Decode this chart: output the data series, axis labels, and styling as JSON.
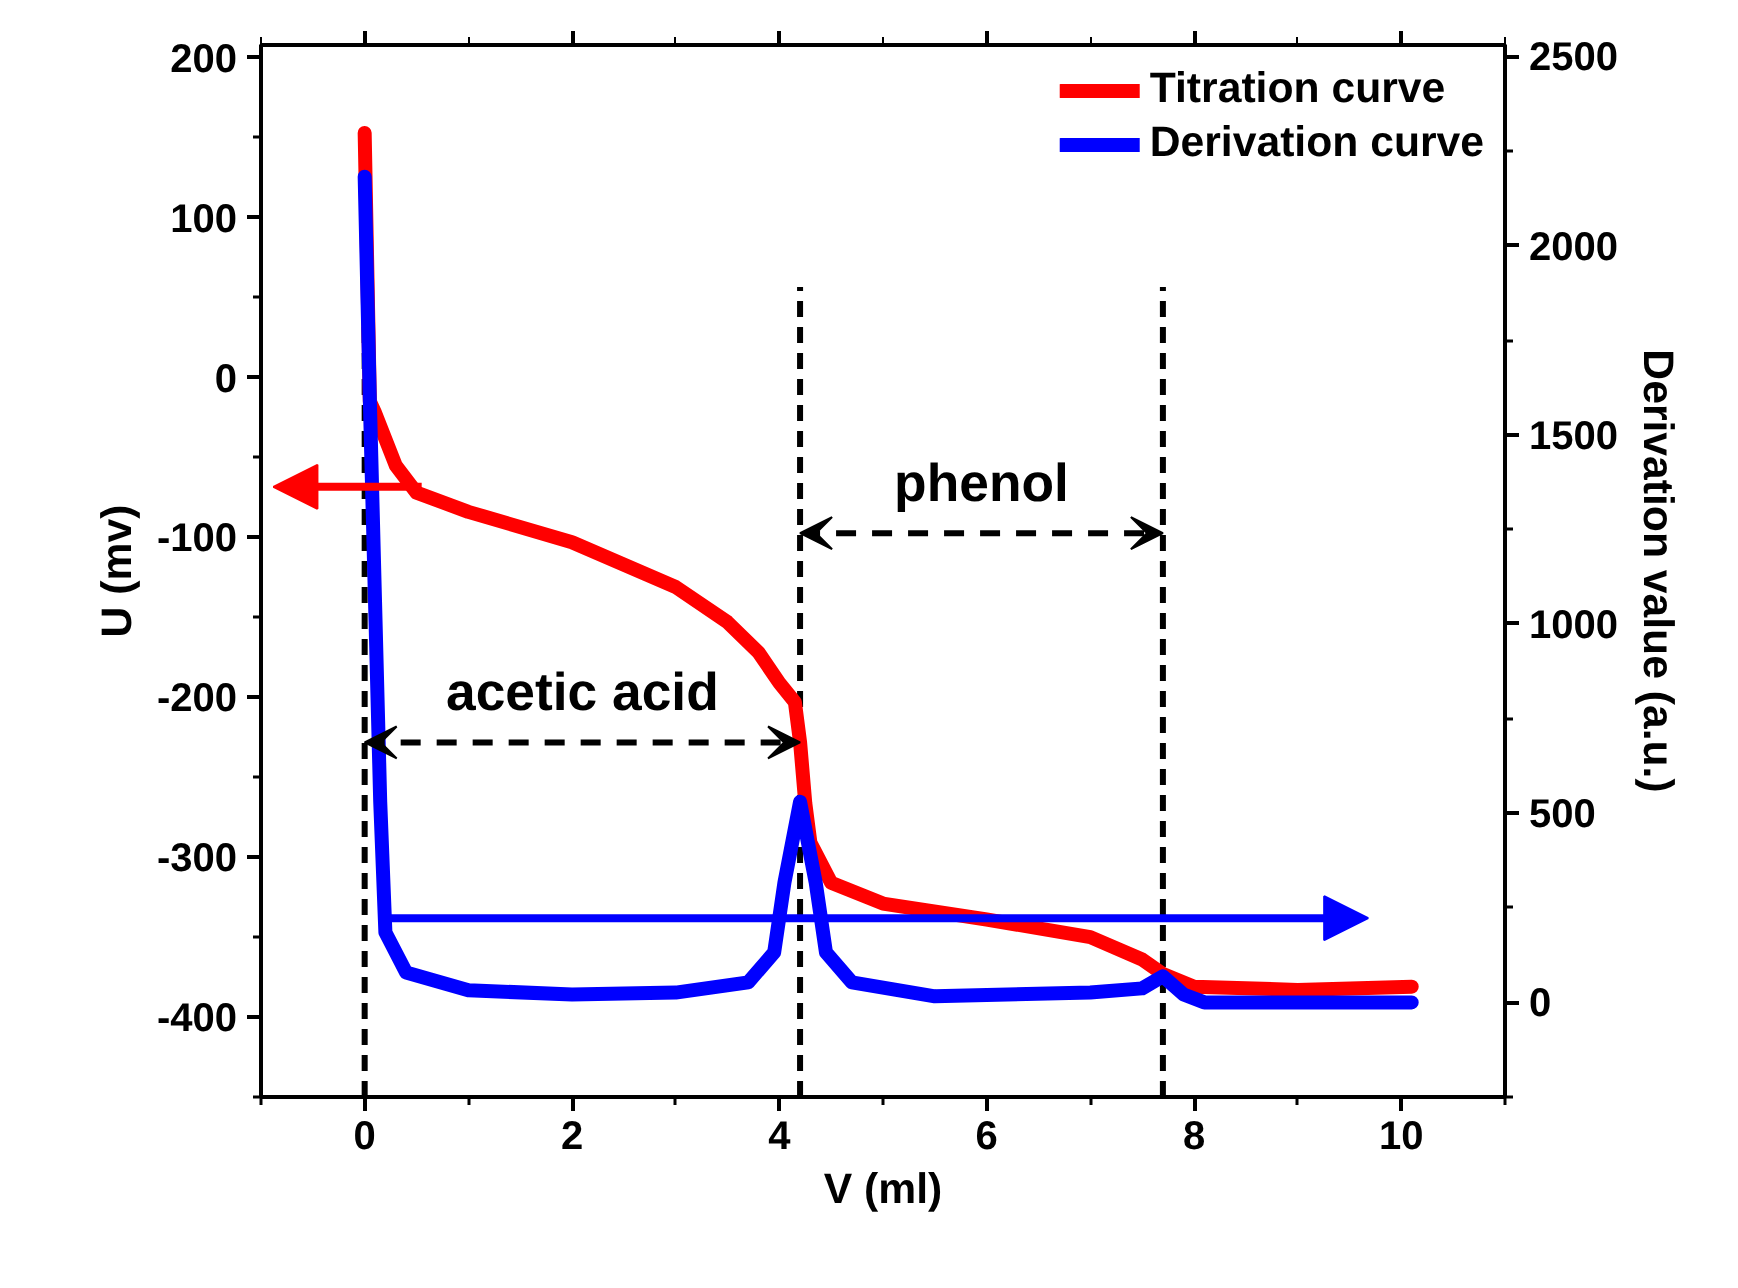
{
  "chart_data": {
    "type": "line",
    "xlabel": "V (ml)",
    "ylabel": "U (mv)",
    "y2label": "Derivation value (a.u.)",
    "xlim": [
      -1,
      11
    ],
    "xticks": [
      0,
      2,
      4,
      6,
      8,
      10
    ],
    "ylim": [
      -450,
      208
    ],
    "yticks": [
      -400,
      -300,
      -200,
      -100,
      0,
      100,
      200
    ],
    "y2lim": [
      -250,
      2530
    ],
    "y2ticks": [
      0,
      500,
      1000,
      1500,
      2000,
      2500
    ],
    "series": [
      {
        "name": "Titration curve",
        "color": "#ff0000",
        "x": [
          0,
          0.05,
          0.1,
          0.3,
          0.5,
          1,
          2,
          3,
          3.5,
          3.8,
          4.0,
          4.15,
          4.2,
          4.25,
          4.3,
          4.5,
          5,
          6,
          7,
          7.5,
          7.7,
          8,
          9,
          10.1
        ],
        "values": [
          153,
          -15,
          -22,
          -55,
          -72,
          -84,
          -103,
          -131,
          -153,
          -172,
          -191,
          -203,
          -228,
          -266,
          -291,
          -316,
          -329,
          -339,
          -350,
          -364,
          -373,
          -381,
          -383,
          -381
        ]
      },
      {
        "name": "Derivation curve",
        "color": "#0000ff",
        "axis": "y2",
        "x": [
          0,
          0.05,
          0.1,
          0.15,
          0.2,
          0.4,
          1,
          2,
          3,
          3.7,
          3.95,
          4.05,
          4.2,
          4.35,
          4.45,
          4.7,
          5.5,
          7,
          7.5,
          7.7,
          7.9,
          8.1,
          10.1
        ],
        "values": [
          2182,
          1589,
          1059,
          530,
          185,
          79,
          32,
          21,
          26,
          53,
          132,
          318,
          530,
          318,
          132,
          53,
          16,
          26,
          37,
          69,
          21,
          0,
          0
        ]
      }
    ],
    "ref_lines": [
      {
        "axis": "x",
        "value": 0,
        "color": "#000000",
        "line_style": "dashed"
      },
      {
        "axis": "x",
        "value": 4.2,
        "color": "#000000",
        "line_style": "dashed"
      },
      {
        "axis": "x",
        "value": 7.7,
        "color": "#000000",
        "line_style": "dashed"
      }
    ],
    "annotations": [
      "acetic acid",
      "phenol"
    ],
    "legend": "top right",
    "grid": false
  }
}
